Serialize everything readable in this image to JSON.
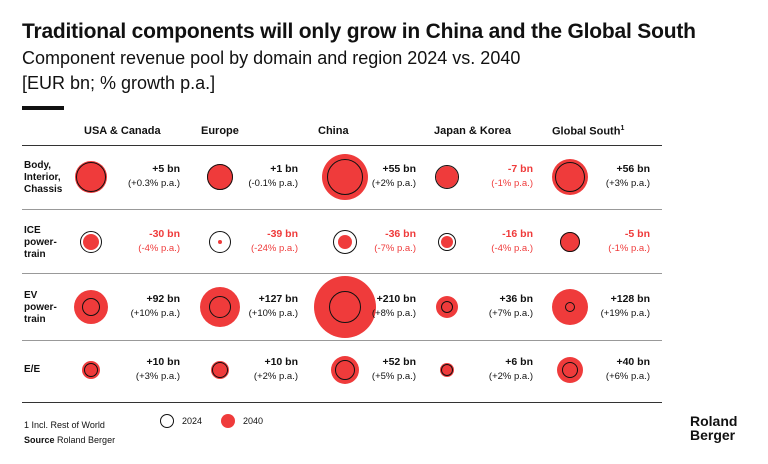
{
  "title": "Traditional components will only grow in China and the Global South",
  "subtitle": "Component revenue pool by domain and region 2024 vs. 2040",
  "unit_label": "[EUR bn; % growth p.a.]",
  "chart_data": {
    "type": "bubble-matrix",
    "columns": [
      "USA & Canada",
      "Europe",
      "China",
      "Japan & Korea",
      "Global South"
    ],
    "column_footnote_marker": "1",
    "rows": [
      {
        "label": [
          "Body,",
          "Interior,",
          "Chassis"
        ],
        "cells": [
          {
            "change": "+5 bn",
            "growth": "(+0.3% p.a.)",
            "negative": false,
            "r2024": 15,
            "r2040": 16
          },
          {
            "change": "+1 bn",
            "growth": "(-0.1% p.a.)",
            "negative": false,
            "r2024": 13,
            "r2040": 13
          },
          {
            "change": "+55 bn",
            "growth": "(+2% p.a.)",
            "negative": false,
            "r2024": 18,
            "r2040": 23
          },
          {
            "change": "-7 bn",
            "growth": "(-1% p.a.)",
            "negative": true,
            "r2024": 12,
            "r2040": 11
          },
          {
            "change": "+56 bn",
            "growth": "(+3% p.a.)",
            "negative": false,
            "r2024": 15,
            "r2040": 18
          }
        ]
      },
      {
        "label": [
          "ICE",
          "power-",
          "train"
        ],
        "cells": [
          {
            "change": "-30 bn",
            "growth": "(-4% p.a.)",
            "negative": true,
            "r2024": 11,
            "r2040": 8
          },
          {
            "change": "-39 bn",
            "growth": "(-24% p.a.)",
            "negative": true,
            "r2024": 11,
            "r2040": 2
          },
          {
            "change": "-36 bn",
            "growth": "(-7% p.a.)",
            "negative": true,
            "r2024": 12,
            "r2040": 7
          },
          {
            "change": "-16 bn",
            "growth": "(-4% p.a.)",
            "negative": true,
            "r2024": 9,
            "r2040": 6
          },
          {
            "change": "-5 bn",
            "growth": "(-1% p.a.)",
            "negative": true,
            "r2024": 10,
            "r2040": 10
          }
        ]
      },
      {
        "label": [
          "EV",
          "power-",
          "train"
        ],
        "cells": [
          {
            "change": "+92 bn",
            "growth": "(+10% p.a.)",
            "negative": false,
            "r2024": 9,
            "r2040": 17
          },
          {
            "change": "+127 bn",
            "growth": "(+10% p.a.)",
            "negative": false,
            "r2024": 11,
            "r2040": 20
          },
          {
            "change": "+210 bn",
            "growth": "(+8% p.a.)",
            "negative": false,
            "r2024": 16,
            "r2040": 31
          },
          {
            "change": "+36 bn",
            "growth": "(+7% p.a.)",
            "negative": false,
            "r2024": 6,
            "r2040": 11
          },
          {
            "change": "+128 bn",
            "growth": "(+19% p.a.)",
            "negative": false,
            "r2024": 5,
            "r2040": 18
          }
        ]
      },
      {
        "label": [
          "E/E"
        ],
        "cells": [
          {
            "change": "+10 bn",
            "growth": "(+3% p.a.)",
            "negative": false,
            "r2024": 7,
            "r2040": 9
          },
          {
            "change": "+10 bn",
            "growth": "(+2% p.a.)",
            "negative": false,
            "r2024": 8,
            "r2040": 9
          },
          {
            "change": "+52 bn",
            "growth": "(+5% p.a.)",
            "negative": false,
            "r2024": 10,
            "r2040": 14
          },
          {
            "change": "+6 bn",
            "growth": "(+2% p.a.)",
            "negative": false,
            "r2024": 6,
            "r2040": 7
          },
          {
            "change": "+40 bn",
            "growth": "(+6% p.a.)",
            "negative": false,
            "r2024": 8,
            "r2040": 13
          }
        ]
      }
    ],
    "legend": [
      "2024",
      "2040"
    ]
  },
  "footnote": "1 Incl. Rest of World",
  "source_label": "Source",
  "source_text": "Roland Berger",
  "logo": [
    "Roland",
    "Berger"
  ],
  "colors": {
    "accent": "#ef3b3b",
    "ink": "#111111"
  }
}
